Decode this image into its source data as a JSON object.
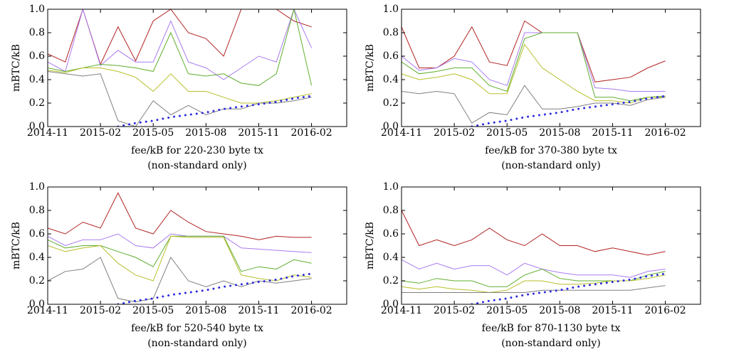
{
  "chart_data": [
    {
      "type": "line",
      "ylabel": "mBTC/kB",
      "xlabel": "fee/kB for 220-230 byte tx",
      "xlabel2": "(non-standard only)",
      "x": [
        "2014-11",
        "2014-12",
        "2015-01",
        "2015-02",
        "2015-03",
        "2015-04",
        "2015-05",
        "2015-06",
        "2015-07",
        "2015-08",
        "2015-09",
        "2015-10",
        "2015-11",
        "2015-12",
        "2016-01",
        "2016-02"
      ],
      "xlim": [
        "2014-11",
        "2016-04"
      ],
      "xticks": [
        "2014-11",
        "2015-02",
        "2015-05",
        "2015-08",
        "2015-11",
        "2016-02"
      ],
      "ylim": [
        0,
        1
      ],
      "yticks": [
        {
          "value": 0,
          "label": "0.0"
        },
        0.2,
        0.4,
        0.6,
        0.8,
        {
          "value": 1,
          "label": "1.0"
        }
      ],
      "series": [
        {
          "color": "#b22222",
          "values": [
            0.62,
            0.55,
            1.0,
            0.53,
            0.85,
            0.56,
            0.9,
            1.0,
            0.8,
            0.75,
            0.6,
            1.0,
            1.0,
            1.0,
            0.9,
            0.85
          ]
        },
        {
          "color": "#a97bf0",
          "values": [
            0.55,
            0.47,
            1.0,
            0.52,
            0.65,
            0.55,
            0.55,
            0.9,
            0.55,
            0.5,
            0.4,
            0.5,
            0.6,
            0.55,
            1.0,
            0.67
          ]
        },
        {
          "color": "#5fae2e",
          "values": [
            0.5,
            0.47,
            0.5,
            0.53,
            0.52,
            0.5,
            0.47,
            0.8,
            0.45,
            0.43,
            0.45,
            0.37,
            0.35,
            0.45,
            1.0,
            0.35
          ]
        },
        {
          "color": "#b8bf2a",
          "values": [
            0.48,
            0.46,
            0.5,
            0.5,
            0.47,
            0.42,
            0.3,
            0.45,
            0.3,
            0.3,
            0.25,
            0.2,
            0.2,
            0.22,
            0.25,
            0.28
          ]
        },
        {
          "color": "#808080",
          "values": [
            0.47,
            0.45,
            0.43,
            0.45,
            0.05,
            0.0,
            0.22,
            0.1,
            0.18,
            0.1,
            0.15,
            0.15,
            0.2,
            0.2,
            0.22,
            0.25
          ]
        },
        {
          "color": "#2a2ae0",
          "dotted": true,
          "values": [
            null,
            null,
            null,
            null,
            0.0,
            0.03,
            0.05,
            0.08,
            0.1,
            0.12,
            0.15,
            0.17,
            0.19,
            0.21,
            0.24,
            0.26
          ]
        }
      ]
    },
    {
      "type": "line",
      "ylabel": "mBTC/kB",
      "xlabel": "fee/kB for 370-380 byte tx",
      "xlabel2": "(non-standard only)",
      "x": [
        "2014-11",
        "2014-12",
        "2015-01",
        "2015-02",
        "2015-03",
        "2015-04",
        "2015-05",
        "2015-06",
        "2015-07",
        "2015-08",
        "2015-09",
        "2015-10",
        "2015-11",
        "2015-12",
        "2016-01",
        "2016-02"
      ],
      "xlim": [
        "2014-11",
        "2016-04"
      ],
      "xticks": [
        "2014-11",
        "2015-02",
        "2015-05",
        "2015-08",
        "2015-11",
        "2016-02"
      ],
      "ylim": [
        0,
        1
      ],
      "yticks": [
        {
          "value": 0,
          "label": "0.0"
        },
        0.2,
        0.4,
        0.6,
        0.8,
        {
          "value": 1,
          "label": "1.0"
        }
      ],
      "series": [
        {
          "color": "#b22222",
          "values": [
            0.85,
            0.5,
            0.5,
            0.6,
            0.85,
            0.55,
            0.52,
            0.9,
            0.8,
            0.8,
            0.8,
            0.38,
            0.4,
            0.42,
            0.5,
            0.56
          ]
        },
        {
          "color": "#a97bf0",
          "values": [
            0.6,
            0.48,
            0.5,
            0.58,
            0.55,
            0.4,
            0.35,
            0.8,
            0.8,
            0.8,
            0.8,
            0.33,
            0.32,
            0.3,
            0.3,
            0.3
          ]
        },
        {
          "color": "#5fae2e",
          "values": [
            0.55,
            0.45,
            0.47,
            0.5,
            0.5,
            0.35,
            0.3,
            0.75,
            0.8,
            0.8,
            0.8,
            0.25,
            0.25,
            0.22,
            0.25,
            0.26
          ]
        },
        {
          "color": "#b8bf2a",
          "values": [
            0.45,
            0.4,
            0.42,
            0.45,
            0.4,
            0.28,
            0.28,
            0.7,
            0.5,
            0.4,
            0.3,
            0.22,
            0.22,
            0.2,
            0.25,
            0.25
          ]
        },
        {
          "color": "#808080",
          "values": [
            0.3,
            0.28,
            0.3,
            0.28,
            0.03,
            0.12,
            0.1,
            0.35,
            0.15,
            0.15,
            0.17,
            0.2,
            0.2,
            0.18,
            0.23,
            0.25
          ]
        },
        {
          "color": "#2a2ae0",
          "dotted": true,
          "values": [
            null,
            null,
            null,
            null,
            0.0,
            0.03,
            0.05,
            0.08,
            0.1,
            0.12,
            0.15,
            0.17,
            0.19,
            0.21,
            0.24,
            0.26
          ]
        }
      ]
    },
    {
      "type": "line",
      "ylabel": "mBTC/kB",
      "xlabel": "fee/kB for 520-540 byte tx",
      "xlabel2": "(non-standard only)",
      "x": [
        "2014-11",
        "2014-12",
        "2015-01",
        "2015-02",
        "2015-03",
        "2015-04",
        "2015-05",
        "2015-06",
        "2015-07",
        "2015-08",
        "2015-09",
        "2015-10",
        "2015-11",
        "2015-12",
        "2016-01",
        "2016-02"
      ],
      "xlim": [
        "2014-11",
        "2016-04"
      ],
      "xticks": [
        "2014-11",
        "2015-02",
        "2015-05",
        "2015-08",
        "2015-11",
        "2016-02"
      ],
      "ylim": [
        0,
        1
      ],
      "yticks": [
        {
          "value": 0,
          "label": "0.0"
        },
        0.2,
        0.4,
        0.6,
        0.8,
        {
          "value": 1,
          "label": "1.0"
        }
      ],
      "series": [
        {
          "color": "#b22222",
          "values": [
            0.65,
            0.6,
            0.7,
            0.65,
            0.95,
            0.65,
            0.6,
            0.8,
            0.7,
            0.62,
            0.6,
            0.58,
            0.55,
            0.58,
            0.57,
            0.57
          ]
        },
        {
          "color": "#a97bf0",
          "values": [
            0.58,
            0.5,
            0.55,
            0.55,
            0.6,
            0.5,
            0.48,
            0.6,
            0.58,
            0.58,
            0.58,
            0.48,
            0.47,
            0.46,
            0.45,
            0.44
          ]
        },
        {
          "color": "#5fae2e",
          "values": [
            0.55,
            0.48,
            0.5,
            0.5,
            0.45,
            0.4,
            0.32,
            0.58,
            0.58,
            0.58,
            0.58,
            0.28,
            0.32,
            0.3,
            0.38,
            0.35
          ]
        },
        {
          "color": "#b8bf2a",
          "values": [
            0.5,
            0.45,
            0.48,
            0.5,
            0.35,
            0.25,
            0.2,
            0.58,
            0.57,
            0.57,
            0.57,
            0.25,
            0.22,
            0.2,
            0.25,
            0.23
          ]
        },
        {
          "color": "#808080",
          "values": [
            0.2,
            0.28,
            0.3,
            0.4,
            0.05,
            0.02,
            0.05,
            0.4,
            0.2,
            0.15,
            0.2,
            0.15,
            0.2,
            0.18,
            0.2,
            0.22
          ]
        },
        {
          "color": "#2a2ae0",
          "dotted": true,
          "values": [
            null,
            null,
            null,
            null,
            0.0,
            0.03,
            0.05,
            0.08,
            0.1,
            0.12,
            0.15,
            0.17,
            0.19,
            0.21,
            0.24,
            0.26
          ]
        }
      ]
    },
    {
      "type": "line",
      "ylabel": "mBTC/kB",
      "xlabel": "fee/kB for 870-1130 byte tx",
      "xlabel2": "(non-standard only)",
      "x": [
        "2014-11",
        "2014-12",
        "2015-01",
        "2015-02",
        "2015-03",
        "2015-04",
        "2015-05",
        "2015-06",
        "2015-07",
        "2015-08",
        "2015-09",
        "2015-10",
        "2015-11",
        "2015-12",
        "2016-01",
        "2016-02"
      ],
      "xlim": [
        "2014-11",
        "2016-04"
      ],
      "xticks": [
        "2014-11",
        "2015-02",
        "2015-05",
        "2015-08",
        "2015-11",
        "2016-02"
      ],
      "ylim": [
        0,
        1
      ],
      "yticks": [
        {
          "value": 0,
          "label": "0.0"
        },
        0.2,
        0.4,
        0.6,
        0.8,
        {
          "value": 1,
          "label": "1.0"
        }
      ],
      "series": [
        {
          "color": "#b22222",
          "values": [
            0.8,
            0.5,
            0.55,
            0.5,
            0.55,
            0.65,
            0.55,
            0.5,
            0.6,
            0.5,
            0.5,
            0.45,
            0.48,
            0.45,
            0.42,
            0.45
          ]
        },
        {
          "color": "#a97bf0",
          "values": [
            0.38,
            0.3,
            0.35,
            0.3,
            0.33,
            0.33,
            0.25,
            0.35,
            0.3,
            0.27,
            0.25,
            0.25,
            0.25,
            0.23,
            0.28,
            0.3
          ]
        },
        {
          "color": "#5fae2e",
          "values": [
            0.2,
            0.18,
            0.22,
            0.2,
            0.2,
            0.15,
            0.15,
            0.25,
            0.3,
            0.22,
            0.2,
            0.2,
            0.2,
            0.2,
            0.25,
            0.28
          ]
        },
        {
          "color": "#b8bf2a",
          "values": [
            0.15,
            0.13,
            0.15,
            0.13,
            0.12,
            0.1,
            0.12,
            0.2,
            0.2,
            0.17,
            0.17,
            0.18,
            0.2,
            0.2,
            0.22,
            0.25
          ]
        },
        {
          "color": "#808080",
          "values": [
            0.1,
            0.1,
            0.1,
            0.1,
            0.1,
            0.1,
            0.1,
            0.1,
            0.12,
            0.12,
            0.12,
            0.12,
            0.12,
            0.12,
            0.14,
            0.16
          ]
        },
        {
          "color": "#2a2ae0",
          "dotted": true,
          "values": [
            null,
            null,
            null,
            null,
            0.0,
            0.03,
            0.05,
            0.08,
            0.1,
            0.12,
            0.15,
            0.17,
            0.19,
            0.21,
            0.24,
            0.26
          ]
        }
      ]
    }
  ]
}
